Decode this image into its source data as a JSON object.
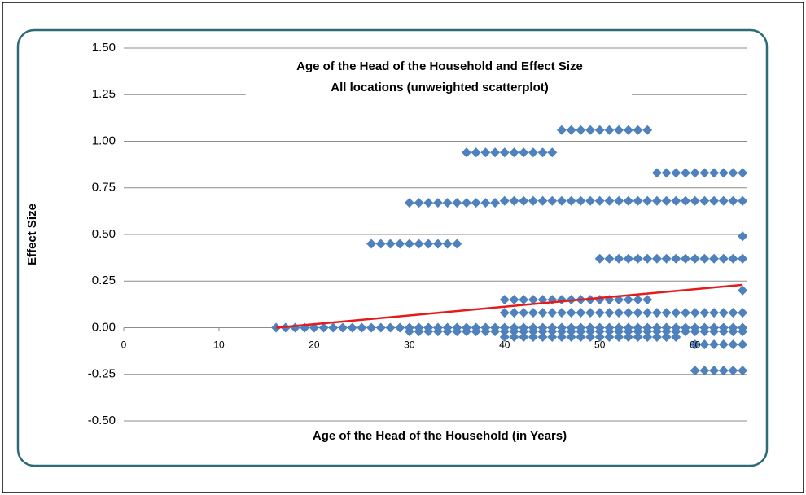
{
  "chart_data": {
    "type": "scatter",
    "title": "Age of the Head of the Household and Effect Size",
    "subtitle": "All locations (unweighted scatterplot)",
    "x_label": "Age of the Head of the Household (in Years)",
    "y_label": "Effect Size",
    "color": "#4f81bd",
    "xlim": [
      0,
      65.5
    ],
    "ylim": [
      -0.5,
      1.5
    ],
    "xticks": [
      0,
      10,
      20,
      30,
      40,
      50,
      60
    ],
    "yticks": [
      {
        "value": -0.5,
        "label": "-0.50"
      },
      {
        "value": -0.25,
        "label": "-0.25"
      },
      {
        "value": 0,
        "label": "0.00"
      },
      {
        "value": 0.25,
        "label": "0.25"
      },
      {
        "value": 0.5,
        "label": "0.50"
      },
      {
        "value": 0.75,
        "label": "0.75"
      },
      {
        "value": 1,
        "label": "1.00"
      },
      {
        "value": 1.25,
        "label": "1.25"
      },
      {
        "value": 1.5,
        "label": "1.50"
      }
    ],
    "grid": true,
    "x": [
      16,
      17,
      18,
      19,
      20,
      21,
      22,
      23,
      24,
      25,
      26,
      27,
      28,
      29,
      30,
      31,
      32,
      33,
      34,
      35,
      36,
      37,
      38,
      39,
      40,
      41,
      42,
      43,
      44,
      45,
      46,
      47,
      48,
      49,
      50,
      51,
      52,
      53,
      54,
      55,
      56,
      57,
      58,
      59,
      60,
      61,
      62,
      63,
      64,
      65,
      30,
      31,
      32,
      33,
      34,
      35,
      36,
      37,
      38,
      39,
      40,
      41,
      42,
      43,
      44,
      45,
      46,
      47,
      48,
      49,
      50,
      51,
      52,
      53,
      54,
      55,
      56,
      57,
      58,
      59,
      60,
      61,
      62,
      63,
      64,
      65,
      40,
      41,
      42,
      43,
      44,
      45,
      46,
      47,
      48,
      49,
      50,
      51,
      52,
      53,
      54,
      55,
      56,
      57,
      58,
      59,
      60,
      61,
      62,
      63,
      64,
      65,
      40,
      41,
      42,
      43,
      44,
      45,
      46,
      47,
      48,
      49,
      50,
      51,
      52,
      53,
      54,
      55,
      40,
      41,
      42,
      43,
      44,
      45,
      46,
      47,
      48,
      49,
      50,
      51,
      52,
      53,
      54,
      55,
      56,
      57,
      58,
      26,
      27,
      28,
      29,
      30,
      31,
      32,
      33,
      34,
      35,
      30,
      31,
      32,
      33,
      34,
      35,
      36,
      37,
      38,
      39,
      40,
      41,
      42,
      43,
      44,
      45,
      46,
      47,
      48,
      49,
      50,
      51,
      52,
      53,
      54,
      55,
      56,
      57,
      58,
      59,
      60,
      61,
      62,
      63,
      64,
      65,
      36,
      37,
      38,
      39,
      40,
      41,
      42,
      43,
      44,
      45,
      46,
      47,
      48,
      49,
      50,
      51,
      52,
      53,
      54,
      55,
      56,
      57,
      58,
      59,
      60,
      61,
      62,
      63,
      64,
      65,
      50,
      51,
      52,
      53,
      54,
      55,
      56,
      57,
      58,
      59,
      60,
      61,
      62,
      63,
      64,
      65,
      65,
      65,
      60,
      61,
      62,
      63,
      64,
      65,
      60,
      61,
      62,
      63,
      64,
      65
    ],
    "values": [
      0,
      0,
      0,
      0,
      0,
      0,
      0,
      0,
      0,
      0,
      0,
      0,
      0,
      0,
      0,
      0,
      0,
      0,
      0,
      0,
      0,
      0,
      0,
      0,
      0,
      0,
      0,
      0,
      0,
      0,
      0,
      0,
      0,
      0,
      0,
      0,
      0,
      0,
      0,
      0,
      0,
      0,
      0,
      0,
      0,
      0,
      0,
      0,
      0,
      0,
      -0.02,
      -0.02,
      -0.02,
      -0.02,
      -0.02,
      -0.02,
      -0.02,
      -0.02,
      -0.02,
      -0.02,
      -0.02,
      -0.02,
      -0.02,
      -0.02,
      -0.02,
      -0.02,
      -0.02,
      -0.02,
      -0.02,
      -0.02,
      -0.02,
      -0.02,
      -0.02,
      -0.02,
      -0.02,
      -0.02,
      -0.02,
      -0.02,
      -0.02,
      -0.02,
      -0.02,
      -0.02,
      -0.02,
      -0.02,
      -0.02,
      -0.02,
      0.08,
      0.08,
      0.08,
      0.08,
      0.08,
      0.08,
      0.08,
      0.08,
      0.08,
      0.08,
      0.08,
      0.08,
      0.08,
      0.08,
      0.08,
      0.08,
      0.08,
      0.08,
      0.08,
      0.08,
      0.08,
      0.08,
      0.08,
      0.08,
      0.08,
      0.08,
      0.15,
      0.15,
      0.15,
      0.15,
      0.15,
      0.15,
      0.15,
      0.15,
      0.15,
      0.15,
      0.15,
      0.15,
      0.15,
      0.15,
      0.15,
      0.15,
      -0.05,
      -0.05,
      -0.05,
      -0.05,
      -0.05,
      -0.05,
      -0.05,
      -0.05,
      -0.05,
      -0.05,
      -0.05,
      -0.05,
      -0.05,
      -0.05,
      -0.05,
      -0.05,
      -0.05,
      -0.05,
      -0.05,
      0.45,
      0.45,
      0.45,
      0.45,
      0.45,
      0.45,
      0.45,
      0.45,
      0.45,
      0.45,
      0.67,
      0.67,
      0.67,
      0.67,
      0.67,
      0.67,
      0.67,
      0.67,
      0.67,
      0.67,
      0.68,
      0.68,
      0.68,
      0.68,
      0.68,
      0.68,
      0.68,
      0.68,
      0.68,
      0.68,
      0.68,
      0.68,
      0.68,
      0.68,
      0.68,
      0.68,
      0.68,
      0.68,
      0.68,
      0.68,
      0.68,
      0.68,
      0.68,
      0.68,
      0.68,
      0.68,
      0.94,
      0.94,
      0.94,
      0.94,
      0.94,
      0.94,
      0.94,
      0.94,
      0.94,
      0.94,
      1.06,
      1.06,
      1.06,
      1.06,
      1.06,
      1.06,
      1.06,
      1.06,
      1.06,
      1.06,
      0.83,
      0.83,
      0.83,
      0.83,
      0.83,
      0.83,
      0.83,
      0.83,
      0.83,
      0.83,
      0.37,
      0.37,
      0.37,
      0.37,
      0.37,
      0.37,
      0.37,
      0.37,
      0.37,
      0.37,
      0.37,
      0.37,
      0.37,
      0.37,
      0.37,
      0.37,
      0.49,
      0.2,
      -0.09,
      -0.09,
      -0.09,
      -0.09,
      -0.09,
      -0.09,
      -0.23,
      -0.23,
      -0.23,
      -0.23,
      -0.23,
      -0.23
    ],
    "trendline": {
      "color": "#e41a1c",
      "x": [
        16,
        65
      ],
      "values": [
        0,
        0.23
      ]
    }
  }
}
